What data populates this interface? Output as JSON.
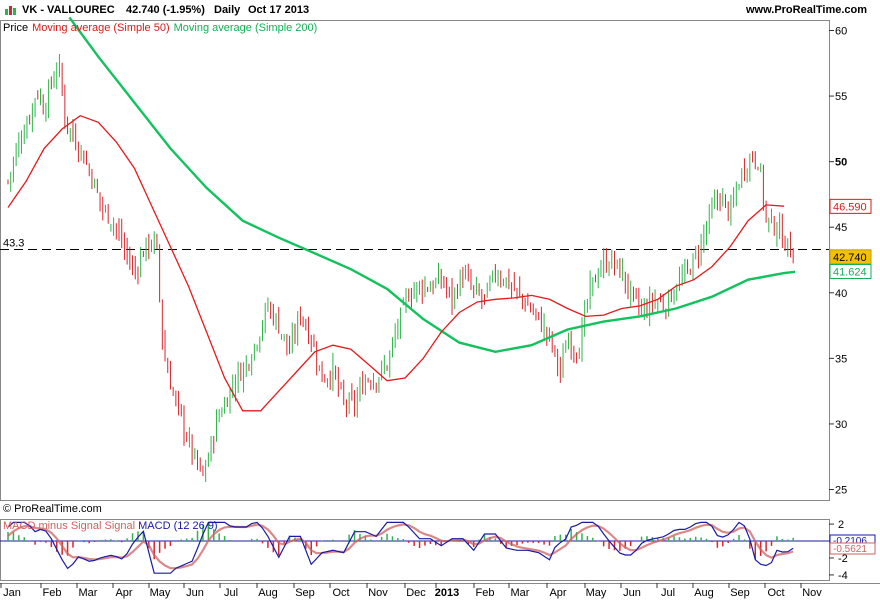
{
  "header": {
    "symbol": "VK - VALLOUREC",
    "quote": "42.740 (-1.95%)",
    "period": "Daily",
    "date": "Oct 17 2013",
    "site": "www.ProRealTime.com"
  },
  "legend": {
    "price": "Price",
    "ma50": "Moving average (Simple 50)",
    "ma200": "Moving average (Simple 200)"
  },
  "credit": "© ProRealTime.com",
  "macd_legend": {
    "hist": "MACD minus Signal Signal",
    "macd": "MACD (12 26 9)"
  },
  "colors": {
    "up": "#2fb44a",
    "down": "#d8262d",
    "ma50": "#e41a1c",
    "ma200": "#12c25c",
    "macd": "#1a1aa8",
    "signal": "#d06060"
  },
  "chart_data": {
    "type": "candlestick",
    "x_labels": [
      "Jan",
      "Feb",
      "Mar",
      "Apr",
      "May",
      "Jun",
      "Jul",
      "Aug",
      "Sep",
      "Oct",
      "Nov",
      "Dec",
      "2013",
      "Feb",
      "Mar",
      "Apr",
      "May",
      "Jun",
      "Jul",
      "Aug",
      "Sep",
      "Oct",
      "Nov"
    ],
    "y_ticks": [
      25,
      30,
      35,
      40,
      45,
      50,
      55,
      60
    ],
    "bold_ticks": [
      50
    ],
    "ylim": [
      24.2,
      60.8
    ],
    "reference_line": {
      "label": "43.3",
      "value": 43.3
    },
    "last_price": "42.740",
    "ma50_last": "46.590",
    "ma200_last": "41.624",
    "price_series_approx": [
      [
        0.0,
        48.5
      ],
      [
        0.3,
        51.5
      ],
      [
        0.6,
        53.5
      ],
      [
        0.8,
        55.5
      ],
      [
        1.0,
        54.0
      ],
      [
        1.2,
        56.0
      ],
      [
        1.4,
        57.5
      ],
      [
        1.6,
        53.0
      ],
      [
        1.8,
        52.0
      ],
      [
        2.0,
        51.0
      ],
      [
        2.3,
        49.0
      ],
      [
        2.6,
        46.5
      ],
      [
        2.9,
        45.5
      ],
      [
        3.2,
        43.5
      ],
      [
        3.5,
        41.5
      ],
      [
        3.8,
        43.5
      ],
      [
        4.1,
        44.0
      ],
      [
        4.3,
        35.5
      ],
      [
        4.6,
        32.0
      ],
      [
        4.9,
        29.5
      ],
      [
        5.2,
        27.0
      ],
      [
        5.4,
        26.0
      ],
      [
        5.6,
        28.0
      ],
      [
        5.8,
        30.5
      ],
      [
        6.0,
        31.5
      ],
      [
        6.3,
        33.5
      ],
      [
        6.6,
        34.5
      ],
      [
        6.9,
        36.5
      ],
      [
        7.2,
        39.0
      ],
      [
        7.5,
        37.5
      ],
      [
        7.8,
        35.5
      ],
      [
        8.1,
        38.5
      ],
      [
        8.4,
        36.5
      ],
      [
        8.7,
        33.5
      ],
      [
        9.0,
        34.0
      ],
      [
        9.3,
        31.5
      ],
      [
        9.6,
        31.5
      ],
      [
        9.9,
        33.5
      ],
      [
        10.2,
        33.5
      ],
      [
        10.5,
        34.5
      ],
      [
        10.8,
        37.5
      ],
      [
        11.1,
        40.0
      ],
      [
        11.4,
        40.5
      ],
      [
        11.7,
        40.5
      ],
      [
        12.0,
        41.0
      ],
      [
        12.3,
        39.5
      ],
      [
        12.6,
        41.5
      ],
      [
        12.9,
        40.0
      ],
      [
        13.2,
        39.5
      ],
      [
        13.5,
        41.5
      ],
      [
        13.8,
        41.0
      ],
      [
        14.1,
        40.0
      ],
      [
        14.4,
        39.0
      ],
      [
        14.7,
        38.0
      ],
      [
        15.0,
        36.5
      ],
      [
        15.3,
        34.0
      ],
      [
        15.5,
        36.5
      ],
      [
        15.8,
        35.5
      ],
      [
        16.1,
        40.0
      ],
      [
        16.4,
        42.0
      ],
      [
        16.7,
        42.5
      ],
      [
        17.0,
        41.5
      ],
      [
        17.3,
        39.5
      ],
      [
        17.6,
        38.5
      ],
      [
        17.9,
        39.5
      ],
      [
        18.2,
        39.0
      ],
      [
        18.5,
        40.5
      ],
      [
        18.8,
        41.5
      ],
      [
        19.1,
        43.0
      ],
      [
        19.4,
        45.5
      ],
      [
        19.7,
        47.5
      ],
      [
        20.0,
        46.0
      ],
      [
        20.3,
        49.0
      ],
      [
        20.6,
        50.5
      ],
      [
        20.8,
        50.0
      ],
      [
        21.0,
        45.5
      ],
      [
        21.3,
        45.0
      ],
      [
        21.6,
        43.5
      ],
      [
        21.8,
        42.7
      ]
    ],
    "ma50_approx": [
      [
        0.0,
        46.5
      ],
      [
        0.5,
        48.5
      ],
      [
        1.0,
        51.0
      ],
      [
        1.5,
        52.5
      ],
      [
        2.0,
        53.5
      ],
      [
        2.5,
        53.0
      ],
      [
        3.0,
        51.5
      ],
      [
        3.5,
        49.5
      ],
      [
        4.0,
        46.5
      ],
      [
        4.5,
        43.5
      ],
      [
        5.0,
        40.5
      ],
      [
        5.5,
        37.0
      ],
      [
        6.0,
        33.5
      ],
      [
        6.5,
        31.0
      ],
      [
        7.0,
        31.0
      ],
      [
        7.5,
        32.5
      ],
      [
        8.0,
        34.0
      ],
      [
        8.5,
        35.5
      ],
      [
        9.0,
        36.0
      ],
      [
        9.5,
        35.7
      ],
      [
        10.0,
        34.5
      ],
      [
        10.5,
        33.3
      ],
      [
        11.0,
        33.5
      ],
      [
        11.5,
        35.0
      ],
      [
        12.0,
        37.0
      ],
      [
        12.5,
        38.5
      ],
      [
        13.0,
        39.3
      ],
      [
        13.5,
        39.5
      ],
      [
        14.0,
        39.6
      ],
      [
        14.5,
        39.8
      ],
      [
        15.0,
        39.5
      ],
      [
        15.5,
        38.8
      ],
      [
        16.0,
        38.2
      ],
      [
        16.5,
        38.3
      ],
      [
        17.0,
        38.8
      ],
      [
        17.5,
        39.0
      ],
      [
        18.0,
        39.5
      ],
      [
        18.5,
        40.5
      ],
      [
        19.0,
        41.0
      ],
      [
        19.5,
        42.0
      ],
      [
        20.0,
        43.5
      ],
      [
        20.5,
        45.5
      ],
      [
        21.0,
        46.7
      ],
      [
        21.5,
        46.6
      ]
    ],
    "ma200_approx": [
      [
        1.7,
        61.0
      ],
      [
        2.5,
        58.0
      ],
      [
        3.5,
        54.5
      ],
      [
        4.5,
        51.0
      ],
      [
        5.5,
        48.0
      ],
      [
        6.5,
        45.5
      ],
      [
        7.5,
        44.2
      ],
      [
        8.5,
        43.0
      ],
      [
        9.5,
        41.8
      ],
      [
        10.5,
        40.3
      ],
      [
        11.5,
        38.0
      ],
      [
        12.5,
        36.2
      ],
      [
        13.5,
        35.5
      ],
      [
        14.5,
        36.0
      ],
      [
        15.5,
        37.2
      ],
      [
        16.5,
        37.8
      ],
      [
        17.5,
        38.2
      ],
      [
        18.5,
        38.8
      ],
      [
        19.5,
        39.7
      ],
      [
        20.5,
        41.0
      ],
      [
        21.5,
        41.5
      ],
      [
        21.8,
        41.6
      ]
    ],
    "macd": {
      "y_ticks": [
        2,
        0,
        -2,
        -4
      ],
      "values_right": [
        "-0.2106",
        "-0.5621"
      ],
      "ylim": [
        -4.6,
        2.6
      ]
    }
  }
}
